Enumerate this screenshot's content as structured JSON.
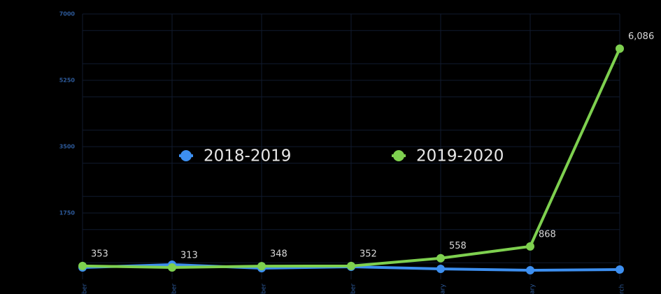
{
  "chart_data": {
    "type": "line",
    "categories": [
      "ber",
      "ber",
      "ber",
      "ber",
      "ary",
      "ary",
      "rch"
    ],
    "series": [
      {
        "name": "2018-2019",
        "color": "#3d8ff0",
        "values": [
          313,
          387,
          295,
          332,
          276,
          240,
          258
        ]
      },
      {
        "name": "2019-2020",
        "color": "#7ed04f",
        "values": [
          353,
          313,
          348,
          352,
          558,
          868,
          6086
        ],
        "value_labels": [
          "353",
          "313",
          "348",
          "352",
          "558",
          "868",
          "6,086"
        ]
      }
    ],
    "ylim": [
      0,
      7000
    ],
    "yticks": [
      1750,
      3500,
      5250,
      7000
    ],
    "grid": true
  }
}
